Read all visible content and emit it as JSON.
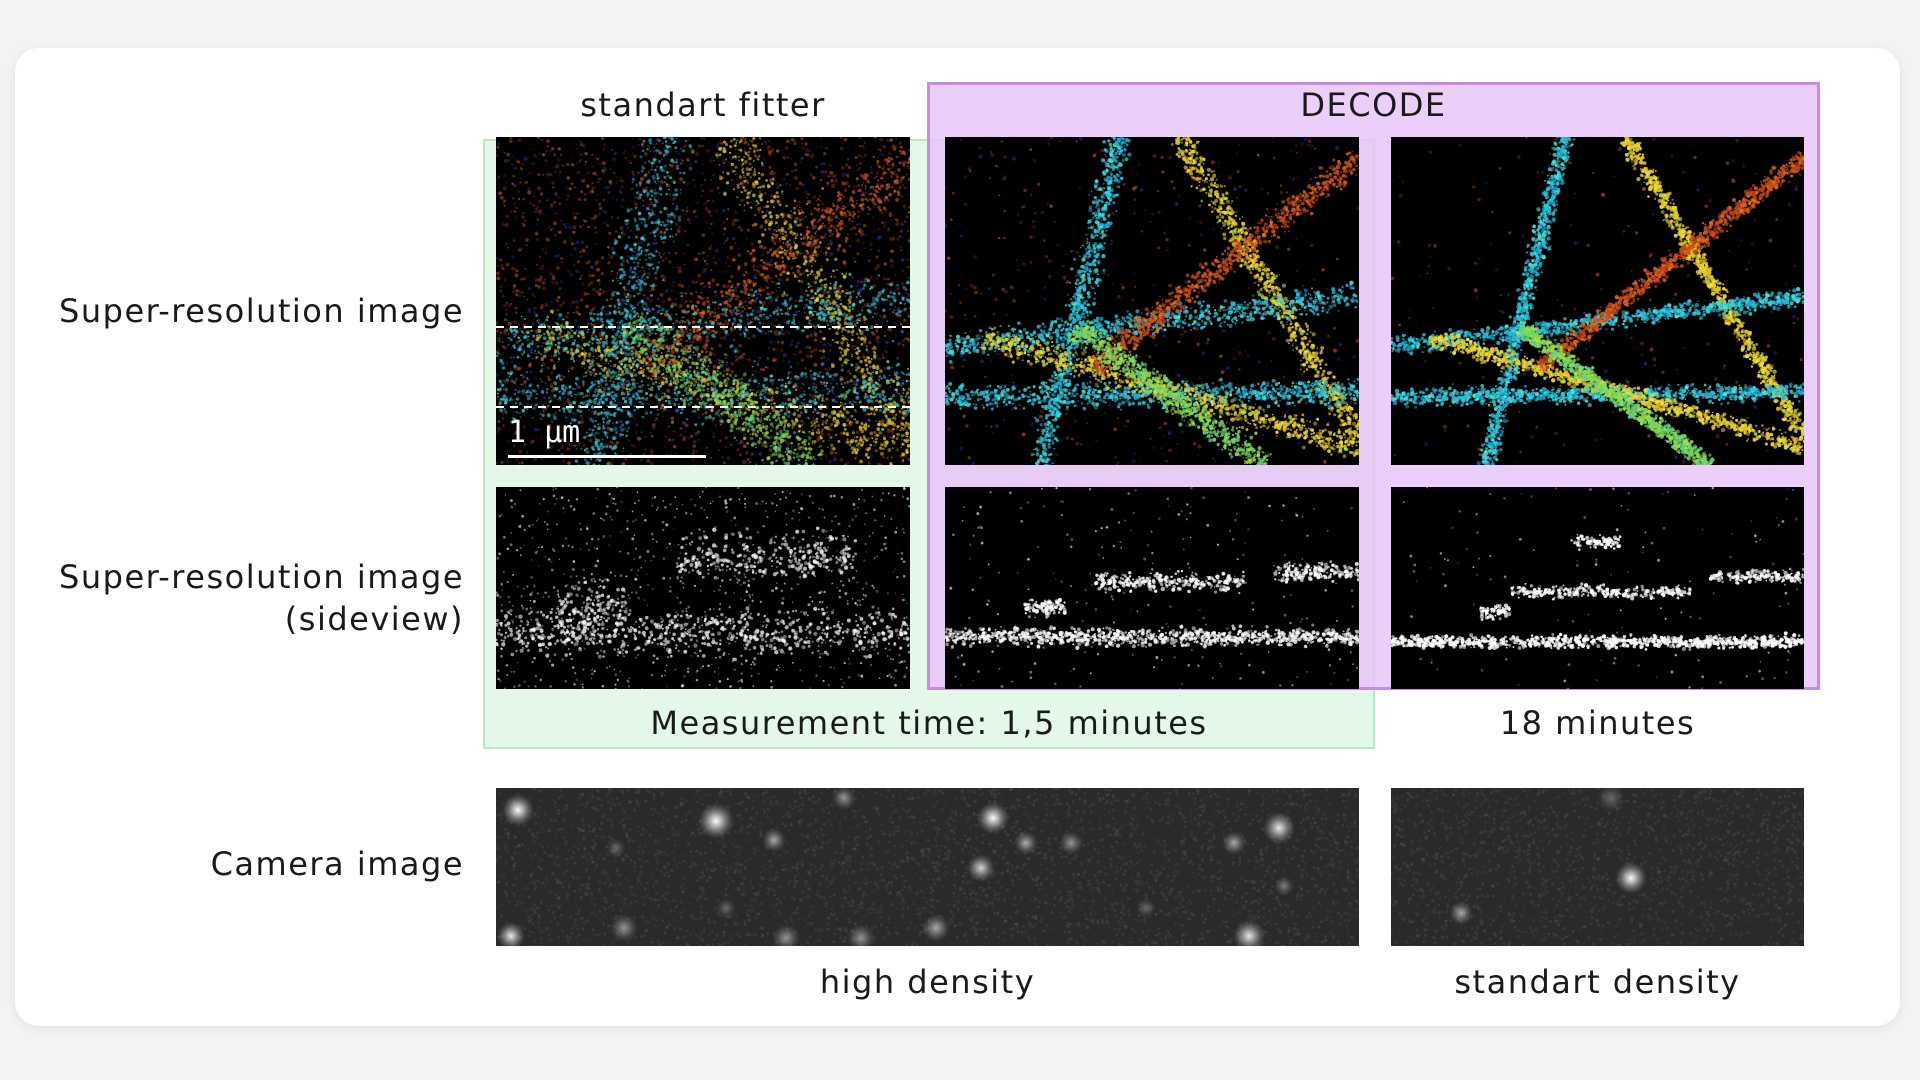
{
  "columns": {
    "standard_fitter": "standart fitter",
    "decode": "DECODE"
  },
  "rows": {
    "super_resolution": "Super-resolution image",
    "sideview_line1": "Super-resolution image",
    "sideview_line2": "(sideview)",
    "camera": "Camera image"
  },
  "measurement": {
    "short": "Measurement time: 1,5 minutes",
    "long": "18 minutes"
  },
  "density": {
    "high": "high density",
    "standard": "standart density"
  },
  "scale_bar": {
    "label": "1 µm"
  },
  "colors": {
    "green_highlight": "#e4f8e9",
    "purple_highlight": "#e8c6f8",
    "purple_border": "#c98ae6"
  }
}
